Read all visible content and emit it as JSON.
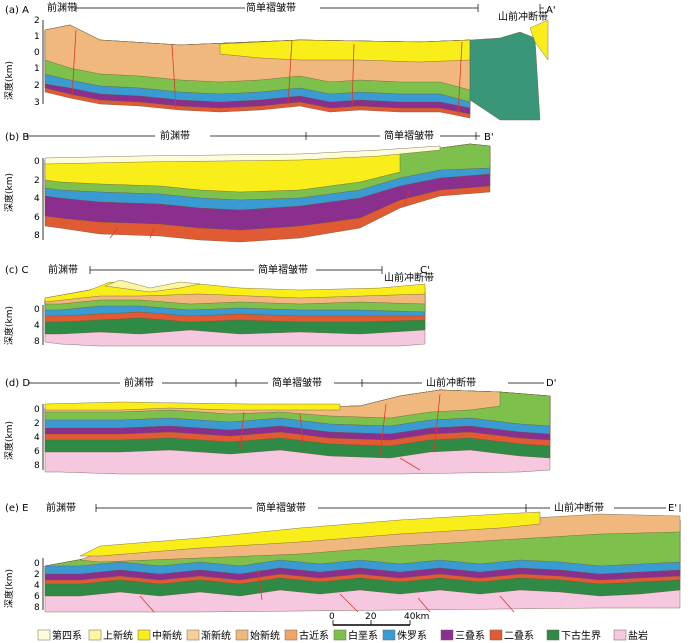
{
  "colors": {
    "quaternary": "#fffcd9",
    "pliocene": "#fdf6a0",
    "miocene": "#f9ed1a",
    "oligocene": "#f9cf99",
    "eocene": "#f0b87c",
    "paleogene": "#eea568",
    "cretaceous": "#7ec04c",
    "jurassic": "#3a9bd3",
    "triassic": "#8b2f8f",
    "permian": "#e05a33",
    "lowerPaleozoic": "#2f8a45",
    "salt": "#f6c8e0",
    "basement": "#3a9678",
    "deep": "#2b5c3e"
  },
  "sections": [
    {
      "letter": "(a) A",
      "endLabel": "A'",
      "zones": [
        "前渊带",
        "简单褶皱带",
        "山前冲断带"
      ],
      "depthLabel": "深度(km)",
      "ticks": [
        "2",
        "1",
        "0",
        "1",
        "2",
        "3"
      ]
    },
    {
      "letter": "(b) B",
      "endLabel": "B'",
      "zones": [
        "前渊带",
        "简单褶皱带"
      ],
      "depthLabel": "深度(km)",
      "ticks": [
        "0",
        "2",
        "4",
        "6",
        "8"
      ]
    },
    {
      "letter": "(c) C",
      "endLabel": "C'",
      "zones": [
        "前渊带",
        "简单褶皱带",
        "山前冲断带"
      ],
      "depthLabel": "深度(km)",
      "ticks": [
        "0",
        "4",
        "8"
      ]
    },
    {
      "letter": "(d) D",
      "endLabel": "D'",
      "zones": [
        "前渊带",
        "简单褶皱带",
        "山前冲断带"
      ],
      "depthLabel": "深度(km)",
      "ticks": [
        "0",
        "2",
        "4",
        "6",
        "8"
      ]
    },
    {
      "letter": "(e) E",
      "endLabel": "E'",
      "zones": [
        "前渊带",
        "简单褶皱带",
        "山前冲断带"
      ],
      "depthLabel": "深度(km)",
      "ticks": [
        "0",
        "2",
        "4",
        "6",
        "8"
      ]
    }
  ],
  "scale": {
    "zero": "0",
    "mid": "20",
    "end": "40km"
  },
  "legend": [
    {
      "label": "第四系",
      "color": "#fffcd9"
    },
    {
      "label": "上新统",
      "color": "#fdf6a0"
    },
    {
      "label": "中新统",
      "color": "#f9ed1a"
    },
    {
      "label": "渐新统",
      "color": "#f9cf99"
    },
    {
      "label": "始新统",
      "color": "#f0b87c"
    },
    {
      "label": "古近系",
      "color": "#eea568"
    },
    {
      "label": "白垩系",
      "color": "#7ec04c"
    },
    {
      "label": "侏罗系",
      "color": "#3a9bd3"
    },
    {
      "label": "三叠系",
      "color": "#8b2f8f"
    },
    {
      "label": "二叠系",
      "color": "#e05a33"
    },
    {
      "label": "下古生界",
      "color": "#2f8a45"
    },
    {
      "label": "盐岩",
      "color": "#f6c8e0"
    }
  ]
}
